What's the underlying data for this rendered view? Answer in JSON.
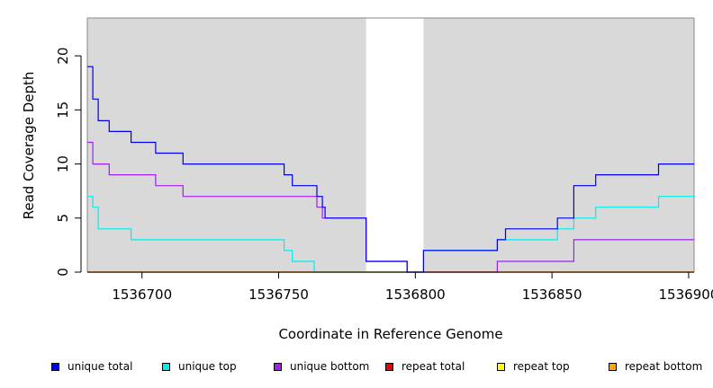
{
  "chart_data": {
    "type": "line",
    "step": true,
    "xlabel": "Coordinate in Reference Genome",
    "ylabel": "Read Coverage Depth",
    "xlim": [
      1536680,
      1536902
    ],
    "ylim": [
      0,
      23.5
    ],
    "x_ticks": [
      1536700,
      1536750,
      1536800,
      1536850,
      1536900
    ],
    "y_ticks": [
      0,
      5,
      10,
      15,
      20
    ],
    "grid": false,
    "background": "#d9d9d9",
    "gap_region": [
      1536782,
      1536803
    ],
    "legend_position": "bottom",
    "series": [
      {
        "name": "unique total",
        "color": "#0000ee",
        "points": [
          [
            1536680,
            19
          ],
          [
            1536682,
            16
          ],
          [
            1536684,
            14
          ],
          [
            1536688,
            13
          ],
          [
            1536696,
            12
          ],
          [
            1536705,
            11
          ],
          [
            1536715,
            10
          ],
          [
            1536752,
            9
          ],
          [
            1536755,
            8
          ],
          [
            1536764,
            7
          ],
          [
            1536766,
            6
          ],
          [
            1536767,
            5
          ],
          [
            1536782,
            1
          ],
          [
            1536797,
            0
          ],
          [
            1536803,
            2
          ],
          [
            1536830,
            3
          ],
          [
            1536833,
            4
          ],
          [
            1536852,
            5
          ],
          [
            1536858,
            8
          ],
          [
            1536866,
            9
          ],
          [
            1536889,
            10
          ],
          [
            1536902,
            10
          ]
        ]
      },
      {
        "name": "unique top",
        "color": "#00eeee",
        "points": [
          [
            1536680,
            7
          ],
          [
            1536682,
            6
          ],
          [
            1536684,
            4
          ],
          [
            1536696,
            3
          ],
          [
            1536752,
            2
          ],
          [
            1536755,
            1
          ],
          [
            1536763,
            0
          ],
          [
            1536803,
            2
          ],
          [
            1536830,
            3
          ],
          [
            1536852,
            4
          ],
          [
            1536858,
            5
          ],
          [
            1536866,
            6
          ],
          [
            1536889,
            7
          ],
          [
            1536902,
            7
          ]
        ]
      },
      {
        "name": "unique bottom",
        "color": "#a020f0",
        "points": [
          [
            1536680,
            12
          ],
          [
            1536682,
            10
          ],
          [
            1536688,
            9
          ],
          [
            1536705,
            8
          ],
          [
            1536715,
            7
          ],
          [
            1536764,
            6
          ],
          [
            1536766,
            5
          ],
          [
            1536782,
            1
          ],
          [
            1536797,
            0
          ],
          [
            1536830,
            1
          ],
          [
            1536858,
            3
          ],
          [
            1536902,
            3
          ]
        ]
      },
      {
        "name": "repeat total",
        "color": "#ee0000",
        "points": [
          [
            1536680,
            0
          ],
          [
            1536902,
            0
          ]
        ]
      },
      {
        "name": "repeat top",
        "color": "#ffff00",
        "points": [
          [
            1536680,
            0
          ],
          [
            1536902,
            0
          ]
        ]
      },
      {
        "name": "repeat bottom",
        "color": "#ffa500",
        "points": [
          [
            1536680,
            0
          ],
          [
            1536902,
            0
          ]
        ]
      }
    ]
  }
}
